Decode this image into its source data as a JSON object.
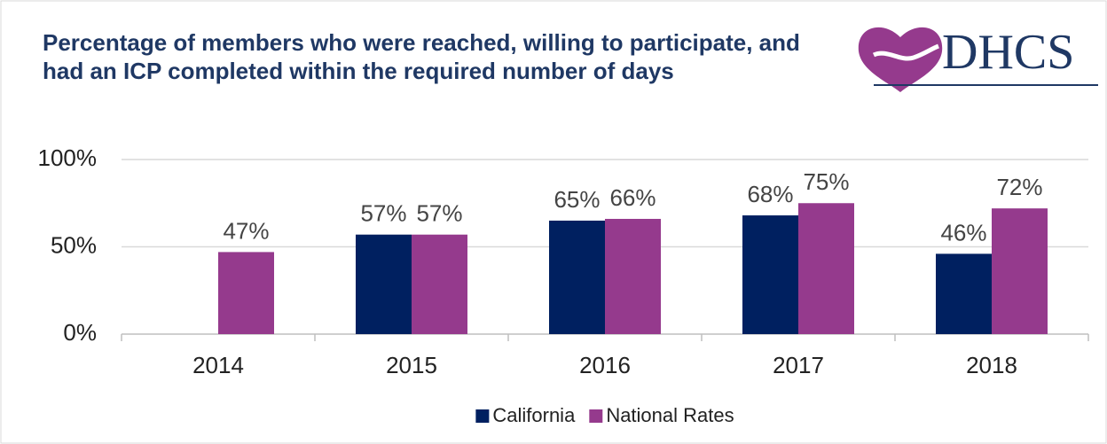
{
  "logo": "DHCS",
  "chart_data": {
    "type": "bar",
    "title": "Percentage of members who were reached, willing to participate, and had an ICP completed within the required number of days",
    "categories": [
      "2014",
      "2015",
      "2016",
      "2017",
      "2018"
    ],
    "series": [
      {
        "name": "California",
        "color": "#002060",
        "values": [
          null,
          57,
          65,
          68,
          46
        ],
        "value_labels": [
          null,
          "57%",
          "65%",
          "68%",
          "46%"
        ]
      },
      {
        "name": "National Rates",
        "color": "#953a8d",
        "values": [
          47,
          57,
          66,
          75,
          72
        ],
        "value_labels": [
          "47%",
          "57%",
          "66%",
          "75%",
          "72%"
        ]
      }
    ],
    "ylim": [
      0,
      100
    ],
    "yticks": [
      {
        "value": 0,
        "label": "0%"
      },
      {
        "value": 50,
        "label": "50%"
      },
      {
        "value": 100,
        "label": "100%"
      }
    ],
    "grid": true
  }
}
